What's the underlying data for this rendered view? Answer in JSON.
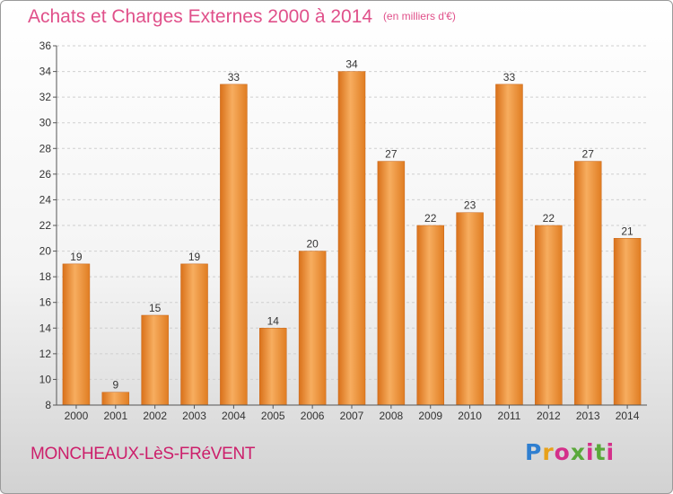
{
  "title": "Achats et Charges Externes 2000 à 2014",
  "unit_note": "(en milliers d'€)",
  "location": "MONCHEAUX-LèS-FRéVENT",
  "logo": {
    "text": "Proxiti",
    "colors": [
      "#2f7fd0",
      "#e8a11a",
      "#d4308a",
      "#5aa83a"
    ]
  },
  "colors": {
    "bar": "#f08a28",
    "bar_light": "#f7ad5f",
    "bar_dark": "#d9711a",
    "title": "#e0508a",
    "location": "#cc1f6b"
  },
  "chart_data": {
    "type": "bar",
    "title": "Achats et Charges Externes 2000 à 2014",
    "xlabel": "",
    "ylabel": "",
    "categories": [
      "2000",
      "2001",
      "2002",
      "2003",
      "2004",
      "2005",
      "2006",
      "2007",
      "2008",
      "2009",
      "2010",
      "2011",
      "2012",
      "2013",
      "2014"
    ],
    "values": [
      19,
      9,
      15,
      19,
      33,
      14,
      20,
      34,
      27,
      22,
      23,
      33,
      22,
      27,
      21
    ],
    "ylim": [
      8,
      36
    ],
    "yticks": [
      8,
      10,
      12,
      14,
      16,
      18,
      20,
      22,
      24,
      26,
      28,
      30,
      32,
      34,
      36
    ],
    "grid": true,
    "legend": "none"
  }
}
